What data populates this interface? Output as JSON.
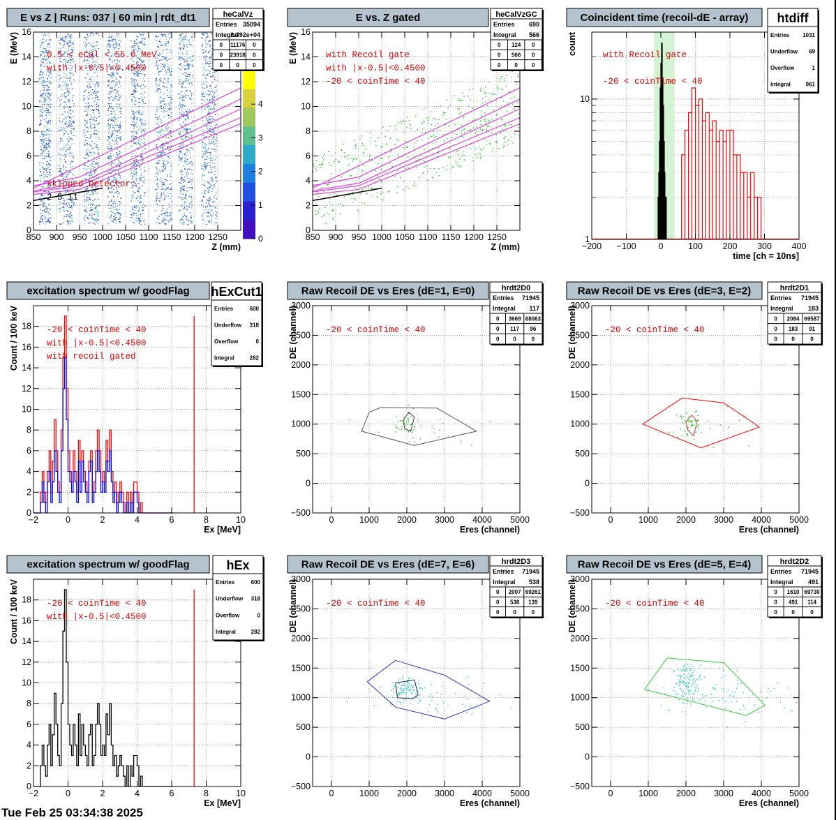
{
  "footer": "Tue Feb 25 03:34:38 2025",
  "chart_data": [
    {
      "type": "heatmap",
      "title": "E vs Z | Runs: 037 | 60 min | rdt_dt1",
      "stat": {
        "name": "heCalVz",
        "rows": [
          [
            "Entries",
            "35094"
          ],
          [
            "Integral",
            "2.392e+04"
          ]
        ],
        "grid": [
          [
            "0",
            "11176",
            "0"
          ],
          [
            "0",
            "23918",
            "0"
          ],
          [
            "0",
            "0",
            "0"
          ]
        ]
      },
      "xlabel": "Z (mm)",
      "ylabel": "E (MeV)",
      "xlim": [
        850,
        1300
      ],
      "ylim": [
        0,
        16
      ],
      "xticks": [
        850,
        900,
        950,
        1000,
        1050,
        1100,
        1150,
        1200,
        1250
      ],
      "yticks": [
        0,
        2,
        4,
        6,
        8,
        10,
        12,
        14,
        16
      ],
      "grid": true,
      "colorbar": {
        "min": 0,
        "max": 5,
        "ticks": [
          0,
          1,
          2,
          3,
          4
        ]
      },
      "bands_mm": [
        [
          862,
          887
        ],
        [
          903,
          937
        ],
        [
          958,
          992
        ],
        [
          1010,
          1039
        ],
        [
          1060,
          1092
        ],
        [
          1114,
          1149
        ],
        [
          1164,
          1195
        ],
        [
          1214,
          1247
        ]
      ],
      "notes": [
        "0.5 < eCal < 55.0 MeV",
        "with |x-0.5|<0.4500",
        "skipped Detector:",
        "2     5     11"
      ]
    },
    {
      "type": "scatter",
      "title": "E vs. Z gated",
      "stat": {
        "name": "heCalVzGC",
        "rows": [
          [
            "Entries",
            "690"
          ],
          [
            "Integral",
            "566"
          ]
        ],
        "grid": [
          [
            "0",
            "124",
            "0"
          ],
          [
            "0",
            "566",
            "0"
          ],
          [
            "0",
            "0",
            "0"
          ]
        ]
      },
      "xlabel": "Z (mm)",
      "ylabel": "E (MeV)",
      "xlim": [
        850,
        1300
      ],
      "ylim": [
        0,
        16
      ],
      "xticks": [
        850,
        900,
        950,
        1000,
        1050,
        1100,
        1150,
        1200,
        1250
      ],
      "yticks": [
        0,
        2,
        4,
        6,
        8,
        10,
        12,
        14,
        16
      ],
      "grid": true,
      "notes": [
        "with Recoil gate",
        "with |x-0.5|<0.4500",
        "-20 < coinTime < 40"
      ]
    },
    {
      "type": "histogram",
      "title": "Coincident time (recoil-dE - array)",
      "stat": {
        "name": "htdiff",
        "rows": [
          [
            "Entries",
            "1031"
          ],
          [
            "Underflow",
            "69"
          ],
          [
            "Overflow",
            "1"
          ],
          [
            "Integral",
            "961"
          ]
        ]
      },
      "xlabel": "time [ch = 10ns]",
      "ylabel": "count",
      "xlim": [
        -200,
        400
      ],
      "ylim": [
        1,
        30
      ],
      "ylog": true,
      "xticks": [
        -200,
        -100,
        0,
        100,
        200,
        300,
        400
      ],
      "yticks": [
        1,
        10
      ],
      "gate": [
        -20,
        40
      ],
      "series": [
        {
          "color": "#000000",
          "x": [
            -8,
            -6,
            -4,
            -2,
            0,
            2,
            4,
            6,
            8,
            10,
            12,
            14
          ],
          "values": [
            2,
            3,
            5,
            12,
            18,
            25,
            14,
            9,
            5,
            3,
            2,
            2
          ]
        },
        {
          "color": "#ff0000",
          "x": [
            60,
            70,
            80,
            90,
            100,
            110,
            120,
            130,
            140,
            150,
            160,
            170,
            180,
            190,
            200,
            210,
            220,
            230,
            240,
            250,
            260,
            270,
            280
          ],
          "values": [
            4,
            6,
            8,
            12,
            9,
            10,
            7,
            8,
            6,
            7,
            5,
            6,
            5,
            6,
            6,
            4,
            4,
            3,
            3,
            2,
            3,
            2,
            2
          ]
        }
      ],
      "notes": [
        "with Recoil gate",
        "-20 < coinTime < 40"
      ]
    },
    {
      "type": "histogram",
      "title": "excitation spectrum w/ goodFlag",
      "stat": {
        "name": "hExCut1",
        "rows": [
          [
            "Entries",
            "600"
          ],
          [
            "Underflow",
            "318"
          ],
          [
            "Overflow",
            "0"
          ],
          [
            "Integral",
            "282"
          ]
        ]
      },
      "xlabel": "Ex [MeV]",
      "ylabel": "Count / 100 keV",
      "xlim": [
        -2,
        10
      ],
      "ylim": [
        0,
        20
      ],
      "xticks": [
        -2,
        0,
        2,
        4,
        6,
        8,
        10
      ],
      "yticks": [
        0,
        2,
        4,
        6,
        8,
        10,
        12,
        14,
        16,
        18
      ],
      "series": [
        {
          "color": "#ff0000",
          "start": -2.0,
          "binw": 0.1,
          "values": [
            0,
            0,
            0,
            0,
            2,
            4,
            2,
            1,
            4,
            6,
            2,
            5,
            9,
            6,
            3,
            2,
            8,
            15,
            19,
            12,
            6,
            4,
            3,
            6,
            4,
            2,
            7,
            3,
            6,
            4,
            3,
            2,
            5,
            6,
            2,
            3,
            6,
            8,
            6,
            3,
            4,
            3,
            7,
            5,
            8,
            4,
            2,
            3,
            1,
            2,
            3,
            2,
            1,
            0,
            2,
            0,
            2,
            1,
            3,
            3,
            2,
            0,
            1,
            0,
            0,
            0,
            0,
            0,
            0,
            0,
            0,
            0,
            0,
            0,
            0,
            0,
            0,
            0,
            0,
            0,
            0
          ]
        },
        {
          "color": "#0000ff",
          "start": -2.0,
          "binw": 0.1,
          "values": [
            0,
            0,
            0,
            0,
            1,
            3,
            1,
            0,
            3,
            4,
            1,
            3,
            6,
            4,
            2,
            1,
            6,
            12,
            15,
            9,
            4,
            3,
            2,
            4,
            3,
            1,
            5,
            2,
            5,
            3,
            2,
            1,
            4,
            5,
            1,
            2,
            4,
            6,
            4,
            2,
            3,
            2,
            5,
            4,
            6,
            3,
            1,
            2,
            0,
            1,
            2,
            1,
            0,
            0,
            1,
            0,
            1,
            0,
            2,
            2,
            1,
            0,
            0,
            0,
            0,
            0,
            0,
            0,
            0,
            0,
            0,
            0,
            0,
            0,
            0,
            0,
            0,
            0,
            0,
            0,
            0
          ]
        }
      ],
      "marker": 7.3,
      "notes": [
        "-20 < coinTime < 40",
        "with |x-0.5|<0.4500",
        "with recoil gated"
      ]
    },
    {
      "type": "scatter",
      "title": "Raw Recoil DE vs Eres (dE=1, E=0)",
      "stat": {
        "name": "hrdt2D0",
        "rows": [
          [
            "Entries",
            "71945"
          ],
          [
            "Integral",
            "117"
          ]
        ],
        "grid": [
          [
            "0",
            "3669",
            "68063"
          ],
          [
            "0",
            "117",
            "96"
          ],
          [
            "0",
            "0",
            "0"
          ]
        ]
      },
      "xlabel": "Eres (channel)",
      "ylabel": "DE (channel)",
      "xlim": [
        -500,
        5000
      ],
      "ylim": [
        -500,
        3000
      ],
      "xticks": [
        0,
        1000,
        2000,
        3000,
        4000,
        5000
      ],
      "yticks": [
        -500,
        0,
        500,
        1000,
        1500,
        2000,
        2500,
        3000
      ],
      "gates": [
        {
          "color": "#555555",
          "points": [
            [
              1000,
              1200
            ],
            [
              1300,
              1280
            ],
            [
              2800,
              1270
            ],
            [
              3850,
              880
            ],
            [
              2200,
              640
            ],
            [
              800,
              880
            ]
          ]
        },
        {
          "color": "#333333",
          "points": [
            [
              1900,
              1060
            ],
            [
              2050,
              1200
            ],
            [
              2200,
              1120
            ],
            [
              2100,
              880
            ],
            [
              1950,
              920
            ]
          ]
        }
      ],
      "notes": [
        "-20 < coinTime < 40"
      ]
    },
    {
      "type": "scatter",
      "title": "Raw Recoil DE vs Eres (dE=3, E=2)",
      "stat": {
        "name": "hrdt2D1",
        "rows": [
          [
            "Entries",
            "71945"
          ],
          [
            "Integral",
            "183"
          ]
        ],
        "grid": [
          [
            "0",
            "2084",
            "69587"
          ],
          [
            "0",
            "183",
            "91"
          ],
          [
            "0",
            "0",
            "0"
          ]
        ]
      },
      "xlabel": "Eres (channel)",
      "ylabel": "DE (channel)",
      "xlim": [
        -500,
        5000
      ],
      "ylim": [
        -500,
        3000
      ],
      "xticks": [
        0,
        1000,
        2000,
        3000,
        4000,
        5000
      ],
      "yticks": [
        -500,
        0,
        500,
        1000,
        1500,
        2000,
        2500,
        3000
      ],
      "gates": [
        {
          "color": "#ff0000",
          "points": [
            [
              1900,
              1440
            ],
            [
              3000,
              1360
            ],
            [
              3950,
              950
            ],
            [
              2400,
              600
            ],
            [
              850,
              1000
            ]
          ]
        },
        {
          "color": "#cc3333",
          "points": [
            [
              2000,
              1040
            ],
            [
              2150,
              1150
            ],
            [
              2300,
              1050
            ],
            [
              2200,
              800
            ],
            [
              2050,
              900
            ]
          ]
        }
      ],
      "notes": [
        "-20 < coinTime < 40"
      ]
    },
    {
      "type": "histogram",
      "title": "excitation spectrum w/ goodFlag",
      "stat": {
        "name": "hEx",
        "rows": [
          [
            "Entries",
            "600"
          ],
          [
            "Underflow",
            "318"
          ],
          [
            "Overflow",
            "0"
          ],
          [
            "Integral",
            "282"
          ]
        ]
      },
      "xlabel": "Ex [MeV]",
      "ylabel": "Count / 100 keV",
      "xlim": [
        -2,
        10
      ],
      "ylim": [
        0,
        20
      ],
      "xticks": [
        -2,
        0,
        2,
        4,
        6,
        8,
        10
      ],
      "yticks": [
        0,
        2,
        4,
        6,
        8,
        10,
        12,
        14,
        16,
        18
      ],
      "series": [
        {
          "color": "#000000",
          "start": -2.0,
          "binw": 0.1,
          "values": [
            0,
            0,
            0,
            0,
            2,
            4,
            2,
            1,
            4,
            6,
            2,
            5,
            9,
            6,
            3,
            2,
            8,
            15,
            19,
            12,
            6,
            4,
            3,
            6,
            4,
            2,
            7,
            3,
            6,
            4,
            3,
            2,
            5,
            6,
            2,
            3,
            6,
            8,
            6,
            3,
            4,
            3,
            7,
            5,
            8,
            4,
            2,
            3,
            1,
            2,
            3,
            2,
            1,
            0,
            2,
            0,
            2,
            1,
            3,
            3,
            2,
            0,
            1,
            0,
            0,
            0,
            0,
            0,
            0,
            0,
            0,
            0,
            0,
            0,
            0,
            0,
            0,
            0,
            0,
            0,
            0
          ]
        }
      ],
      "marker": 7.3,
      "notes": [
        "-20 < coinTime < 40",
        "with |x-0.5|<0.4500"
      ]
    },
    {
      "type": "scatter",
      "title": "Raw Recoil DE vs Eres (dE=7, E=6)",
      "stat": {
        "name": "hrdt2D3",
        "rows": [
          [
            "Entries",
            "71945"
          ],
          [
            "Integral",
            "538"
          ]
        ],
        "grid": [
          [
            "0",
            "2007",
            "69261"
          ],
          [
            "0",
            "538",
            "139"
          ],
          [
            "0",
            "0",
            "0"
          ]
        ]
      },
      "xlabel": "Eres (channel)",
      "ylabel": "DE (channel)",
      "xlim": [
        -500,
        5000
      ],
      "ylim": [
        -500,
        3000
      ],
      "xticks": [
        0,
        1000,
        2000,
        3000,
        4000,
        5000
      ],
      "yticks": [
        -500,
        0,
        500,
        1000,
        1500,
        2000,
        2500,
        3000
      ],
      "gates": [
        {
          "color": "#3333cc",
          "points": [
            [
              1700,
              1630
            ],
            [
              3000,
              1380
            ],
            [
              4200,
              940
            ],
            [
              3000,
              640
            ],
            [
              1700,
              840
            ],
            [
              950,
              1270
            ]
          ]
        },
        {
          "color": "#222266",
          "points": [
            [
              1700,
              1250
            ],
            [
              2200,
              1300
            ],
            [
              2300,
              1050
            ],
            [
              2150,
              980
            ],
            [
              1750,
              1000
            ]
          ]
        }
      ],
      "notes": [
        "-20 < coinTime < 40"
      ]
    },
    {
      "type": "scatter",
      "title": "Raw Recoil DE vs Eres (dE=5, E=4)",
      "stat": {
        "name": "hrdt2D2",
        "rows": [
          [
            "Entries",
            "71945"
          ],
          [
            "Integral",
            "491"
          ]
        ],
        "grid": [
          [
            "0",
            "1610",
            "69730"
          ],
          [
            "0",
            "491",
            "114"
          ],
          [
            "0",
            "0",
            "0"
          ]
        ]
      },
      "xlabel": "Eres (channel)",
      "ylabel": "DE (channel)",
      "xlim": [
        -500,
        5000
      ],
      "ylim": [
        -500,
        3000
      ],
      "xticks": [
        0,
        1000,
        2000,
        3000,
        4000,
        5000
      ],
      "yticks": [
        -500,
        0,
        500,
        1000,
        1500,
        2000,
        2500,
        3000
      ],
      "gates": [
        {
          "color": "#33cc33",
          "points": [
            [
              1500,
              1670
            ],
            [
              3000,
              1590
            ],
            [
              4100,
              870
            ],
            [
              3600,
              700
            ],
            [
              900,
              1140
            ]
          ]
        }
      ],
      "notes": [
        "-20 < coinTime < 40"
      ]
    }
  ]
}
